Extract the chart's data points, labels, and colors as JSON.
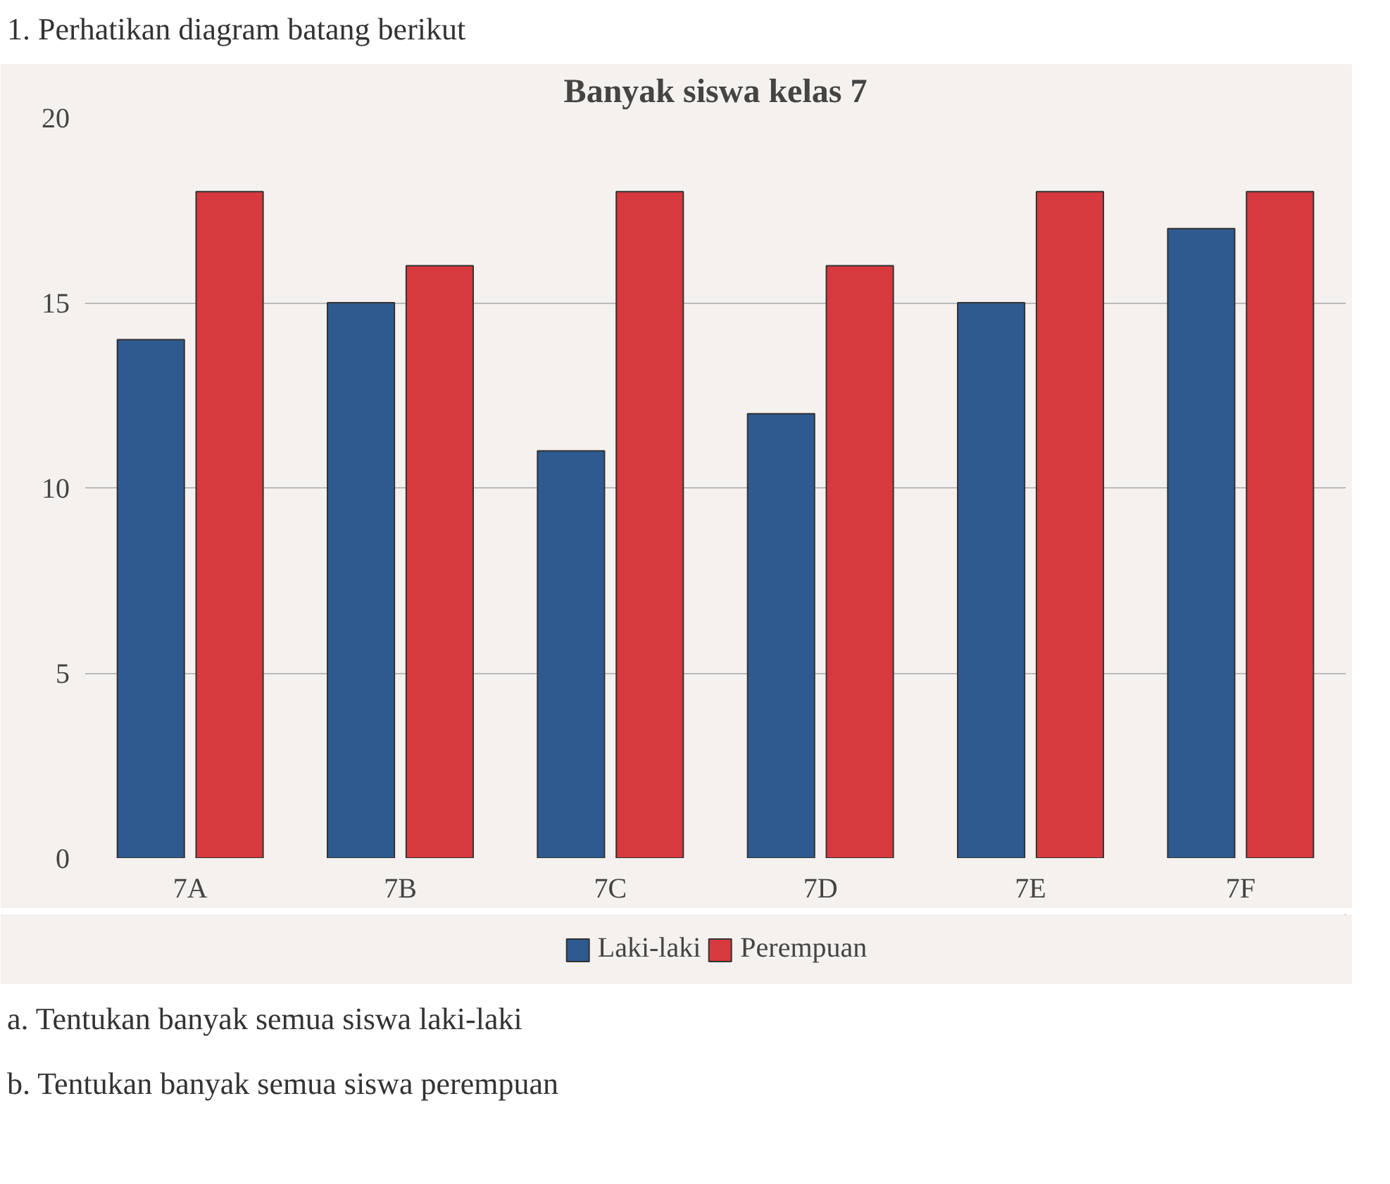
{
  "chart_data": {
    "type": "bar",
    "title": "Banyak siswa kelas 7",
    "categories": [
      "7A",
      "7B",
      "7C",
      "7D",
      "7E",
      "7F"
    ],
    "series": [
      {
        "name": "Laki-laki",
        "color": "#2e5a8f",
        "values": [
          14,
          15,
          11,
          12,
          15,
          17
        ]
      },
      {
        "name": "Perempuan",
        "color": "#d63a3f",
        "values": [
          18,
          16,
          18,
          16,
          18,
          18
        ]
      }
    ],
    "ylim": [
      0,
      20
    ],
    "yticks": [
      0,
      5,
      10,
      15,
      20
    ],
    "grid": "y",
    "legend": "bottom",
    "annotations": [
      "1. Perhatikan diagram batang berikut",
      "a. Tentukan banyak semua siswa laki-laki",
      "b. Tentukan banyak semua siswa perempuan"
    ]
  }
}
